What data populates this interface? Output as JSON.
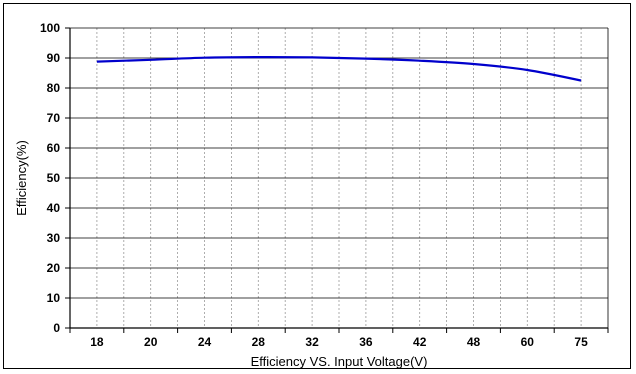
{
  "chart_data": {
    "type": "line",
    "title": "",
    "xlabel": "Efficiency VS. Input Voltage(V)",
    "ylabel": "Efficiency(%)",
    "categories": [
      "18",
      "20",
      "24",
      "28",
      "32",
      "36",
      "42",
      "48",
      "60",
      "75"
    ],
    "ylim": [
      0,
      100
    ],
    "yticks": [
      0,
      10,
      20,
      30,
      40,
      50,
      60,
      70,
      80,
      90,
      100
    ],
    "grid": true,
    "legend": "none",
    "series": [
      {
        "values": [
          88.8,
          89.4,
          90.1,
          90.3,
          90.2,
          89.8,
          89.1,
          88.0,
          86.0,
          82.5
        ],
        "color": "#0000cc"
      }
    ]
  }
}
